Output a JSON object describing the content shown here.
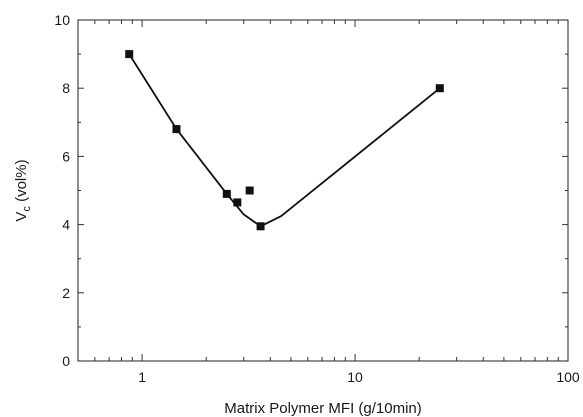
{
  "chart_data": {
    "type": "scatter",
    "title": "",
    "xlabel": "Matrix Polymer MFI (g/10min)",
    "ylabel": {
      "main": "V",
      "sub": "c",
      "rest": " (vol%)"
    },
    "xscale": "log",
    "xlim": [
      0.5,
      100
    ],
    "ylim": [
      0,
      10
    ],
    "xticks": [
      1,
      10,
      100
    ],
    "xtick_labels": [
      "1",
      "10",
      "100"
    ],
    "yticks": [
      0,
      2,
      4,
      6,
      8,
      10
    ],
    "ytick_labels": [
      "0",
      "2",
      "4",
      "6",
      "8",
      "10"
    ],
    "grid": false,
    "legend": "none",
    "points": [
      {
        "x": 0.87,
        "y": 9.0
      },
      {
        "x": 1.45,
        "y": 6.8
      },
      {
        "x": 2.5,
        "y": 4.9
      },
      {
        "x": 2.8,
        "y": 4.65
      },
      {
        "x": 3.2,
        "y": 5.0
      },
      {
        "x": 3.6,
        "y": 3.95
      },
      {
        "x": 25,
        "y": 8.0
      }
    ],
    "trend_line": [
      {
        "x": 0.87,
        "y": 9.0
      },
      {
        "x": 1.45,
        "y": 6.8
      },
      {
        "x": 2.5,
        "y": 4.9
      },
      {
        "x": 3.0,
        "y": 4.3
      },
      {
        "x": 3.6,
        "y": 3.95
      },
      {
        "x": 4.5,
        "y": 4.25
      },
      {
        "x": 25,
        "y": 8.0
      }
    ],
    "colors": {
      "marker": "#111111",
      "line": "#111111",
      "axis": "#333333"
    }
  }
}
